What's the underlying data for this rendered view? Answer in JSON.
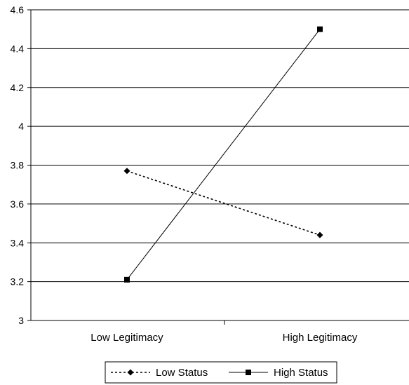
{
  "chart_data": {
    "type": "line",
    "categories": [
      "Low Legitimacy",
      "High Legitimacy"
    ],
    "series": [
      {
        "name": "Low Status",
        "values": [
          3.77,
          3.44
        ],
        "color": "#000000",
        "line_style": "dotted",
        "marker": "diamond"
      },
      {
        "name": "High Status",
        "values": [
          3.21,
          4.5
        ],
        "color": "#000000",
        "line_style": "solid",
        "marker": "square"
      }
    ],
    "ylim": [
      3,
      4.6
    ],
    "yticks": [
      "3",
      "3.2",
      "3.4",
      "3.6",
      "3.8",
      "4",
      "4.2",
      "4.4",
      "4.6"
    ],
    "ytick_values": [
      3,
      3.2,
      3.4,
      3.6,
      3.8,
      4,
      4.2,
      4.4,
      4.6
    ],
    "grid": true,
    "legend_position": "bottom-center"
  }
}
